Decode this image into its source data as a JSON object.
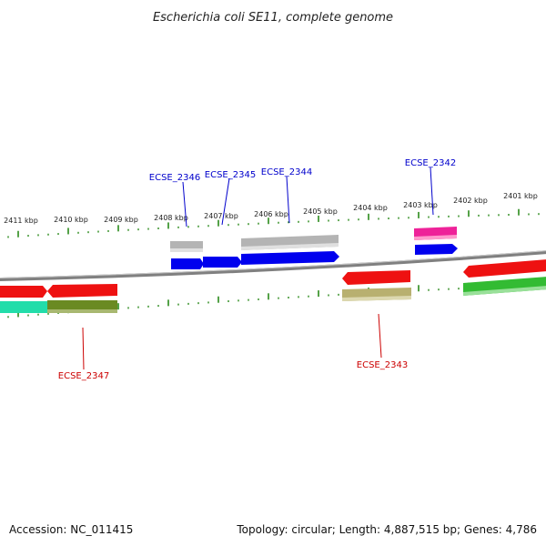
{
  "title": "Escherichia coli SE11, complete genome",
  "accession": "Accession: NC_011415",
  "topology": "Topology: circular; Length: 4,887,515 bp; Genes: 4,786",
  "ruler": {
    "labels": [
      "2411 kbp",
      "2410 kbp",
      "2409 kbp",
      "2408 kbp",
      "2407 kbp",
      "2406 kbp",
      "2405 kbp",
      "2404 kbp",
      "2403 kbp",
      "2402 kbp",
      "2401 kbp"
    ]
  },
  "gene_labels": {
    "ecse_2346": "ECSE_2346",
    "ecse_2345": "ECSE_2345",
    "ecse_2344": "ECSE_2344",
    "ecse_2342": "ECSE_2342",
    "ecse_2347": "ECSE_2347",
    "ecse_2343": "ECSE_2343"
  },
  "colors": {
    "forward_label": "#0000cc",
    "reverse_label": "#cc0000",
    "tick": "#2a8a1a",
    "backbone": "#808080",
    "cds_blue": "#0000ee",
    "cds_red": "#ee1111",
    "cds_magenta": "#ee2299",
    "cds_gray": "#b4b4b4",
    "cds_olive": "#b8b070",
    "cds_green": "#33bb33",
    "cds_cyan": "#22ddaa",
    "cds_darkolive": "#6a8a22"
  }
}
